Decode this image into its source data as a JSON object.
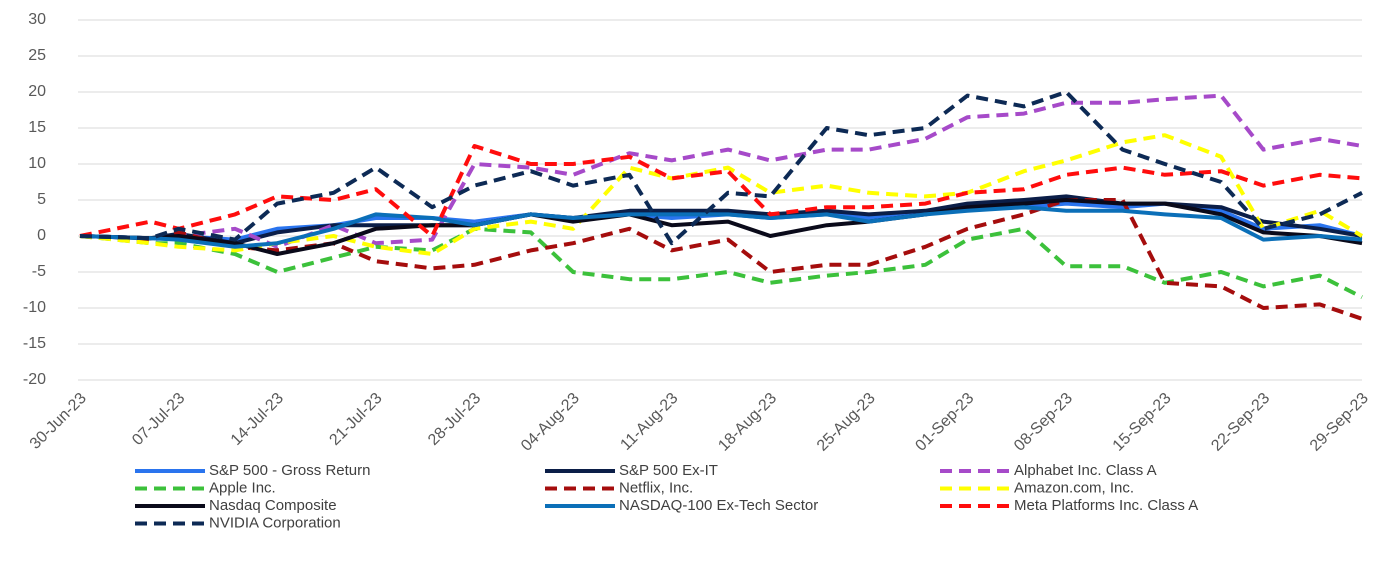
{
  "chart_data": {
    "type": "line",
    "x": [
      "2023-06-30",
      "2023-07-05",
      "2023-07-07",
      "2023-07-11",
      "2023-07-14",
      "2023-07-18",
      "2023-07-21",
      "2023-07-25",
      "2023-07-28",
      "2023-08-01",
      "2023-08-04",
      "2023-08-08",
      "2023-08-11",
      "2023-08-15",
      "2023-08-18",
      "2023-08-22",
      "2023-08-25",
      "2023-08-29",
      "2023-09-01",
      "2023-09-05",
      "2023-09-08",
      "2023-09-12",
      "2023-09-15",
      "2023-09-19",
      "2023-09-22",
      "2023-09-26",
      "2023-09-29"
    ],
    "xlim": [
      "2023-06-30",
      "2023-09-29"
    ],
    "xticks": [
      {
        "value": "2023-06-30",
        "label": "30-Jun-23"
      },
      {
        "value": "2023-07-07",
        "label": "07-Jul-23"
      },
      {
        "value": "2023-07-14",
        "label": "14-Jul-23"
      },
      {
        "value": "2023-07-21",
        "label": "21-Jul-23"
      },
      {
        "value": "2023-07-28",
        "label": "28-Jul-23"
      },
      {
        "value": "2023-08-04",
        "label": "04-Aug-23"
      },
      {
        "value": "2023-08-11",
        "label": "11-Aug-23"
      },
      {
        "value": "2023-08-18",
        "label": "18-Aug-23"
      },
      {
        "value": "2023-08-25",
        "label": "25-Aug-23"
      },
      {
        "value": "2023-09-01",
        "label": "01-Sep-23"
      },
      {
        "value": "2023-09-08",
        "label": "08-Sep-23"
      },
      {
        "value": "2023-09-15",
        "label": "15-Sep-23"
      },
      {
        "value": "2023-09-22",
        "label": "22-Sep-23"
      },
      {
        "value": "2023-09-29",
        "label": "29-Sep-23"
      }
    ],
    "ylim": [
      -20,
      30
    ],
    "yticks": [
      -20,
      -15,
      -10,
      -5,
      0,
      5,
      10,
      15,
      20,
      25,
      30
    ],
    "grid": true,
    "series": [
      {
        "name": "S&P 500 - Gross Return",
        "color": "#2a74ee",
        "dashed": false,
        "values": [
          0,
          -0.3,
          0,
          -0.5,
          1,
          1.5,
          2.5,
          2.5,
          2,
          3,
          2.5,
          3,
          2.5,
          3,
          2.5,
          3,
          2.5,
          3,
          4,
          4,
          4.5,
          4,
          4.5,
          3.5,
          1,
          1.5,
          0
        ]
      },
      {
        "name": "S&P 500 Ex-IT",
        "color": "#0b1e48",
        "dashed": false,
        "values": [
          0,
          -0.3,
          0.3,
          -1,
          0.5,
          1.5,
          1.5,
          1.5,
          1.5,
          3,
          2.5,
          3.5,
          3.5,
          3.5,
          3,
          3.5,
          3,
          3.5,
          4.5,
          5,
          5.5,
          4.5,
          4.5,
          4,
          2,
          1,
          0
        ]
      },
      {
        "name": "Alphabet Inc. Class A",
        "color": "#a64ac9",
        "dashed": true,
        "values": [
          0,
          -0.5,
          0,
          1,
          -1.5,
          1.5,
          -1,
          -0.5,
          10,
          9.5,
          8.5,
          11.5,
          10.5,
          12,
          10.5,
          12,
          12,
          13.5,
          16.5,
          17,
          18.5,
          18.5,
          19,
          19.5,
          12,
          13.5,
          12.5
        ]
      },
      {
        "name": "Apple Inc.",
        "color": "#3cc13b",
        "dashed": true,
        "values": [
          0,
          -1,
          -1,
          -2.5,
          -5,
          -3,
          -1.5,
          -2,
          1,
          0.5,
          -5,
          -6,
          -6,
          -5,
          -6.5,
          -5.5,
          -5,
          -4,
          -0.5,
          1,
          -4.2,
          -4.2,
          -6.5,
          -5,
          -7,
          -5.5,
          -8.5
        ]
      },
      {
        "name": "Netflix, Inc.",
        "color": "#a50d0d",
        "dashed": true,
        "values": [
          0,
          -0.5,
          0.5,
          -1.5,
          -2,
          -1,
          -3.5,
          -4.5,
          -4,
          -2,
          -1,
          1,
          -2,
          -0.5,
          -5,
          -4,
          -4,
          -1.5,
          1,
          3,
          5,
          5,
          -6.5,
          -7,
          -10,
          -9.5,
          -11.5
        ]
      },
      {
        "name": "Amazon.com, Inc.",
        "color": "#ffff00",
        "dashed": true,
        "values": [
          0,
          -1,
          -1.5,
          -2,
          -1,
          0,
          -1.5,
          -2.5,
          1,
          2,
          1,
          9.5,
          8,
          9.5,
          6,
          7,
          6,
          5.5,
          6,
          9,
          10.5,
          13,
          14,
          11,
          1,
          3.5,
          0
        ]
      },
      {
        "name": "Nasdaq Composite",
        "color": "#0a0a1a",
        "dashed": false,
        "values": [
          0,
          -0.3,
          0,
          -1,
          -2.5,
          -1,
          1,
          1.5,
          1.5,
          3,
          2,
          3,
          1.5,
          2,
          0,
          1.5,
          2,
          3,
          4,
          4.5,
          5,
          4.5,
          4.5,
          3,
          0.5,
          0,
          -1
        ]
      },
      {
        "name": "NASDAQ-100 Ex-Tech Sector",
        "color": "#0b6fb8",
        "dashed": false,
        "values": [
          0,
          -0.3,
          -0.5,
          -1.5,
          -1,
          1,
          3,
          2.5,
          1.5,
          3,
          2.5,
          3,
          3,
          3,
          2.5,
          3,
          2,
          3,
          3.5,
          4,
          3.5,
          3.5,
          3,
          2.5,
          -0.5,
          0,
          -0.5
        ]
      },
      {
        "name": "Meta Platforms Inc. Class A",
        "color": "#ff0d0d",
        "dashed": true,
        "values": [
          0,
          2,
          1,
          3,
          5.5,
          5,
          6.5,
          0,
          12.5,
          10,
          10,
          11,
          8,
          9,
          3,
          4,
          4,
          4.5,
          6,
          6.5,
          8.5,
          9.5,
          8.5,
          9,
          7,
          8.5,
          8
        ]
      },
      {
        "name": "NVIDIA Corporation",
        "color": "#0d2a55",
        "dashed": true,
        "values": [
          0,
          -0.3,
          1,
          -0.5,
          4.5,
          6,
          9.5,
          4,
          7,
          9,
          7,
          8.5,
          -1,
          6,
          5.5,
          15,
          14,
          15,
          19.5,
          18,
          20,
          12,
          10,
          7.5,
          1,
          3,
          6
        ]
      }
    ]
  }
}
